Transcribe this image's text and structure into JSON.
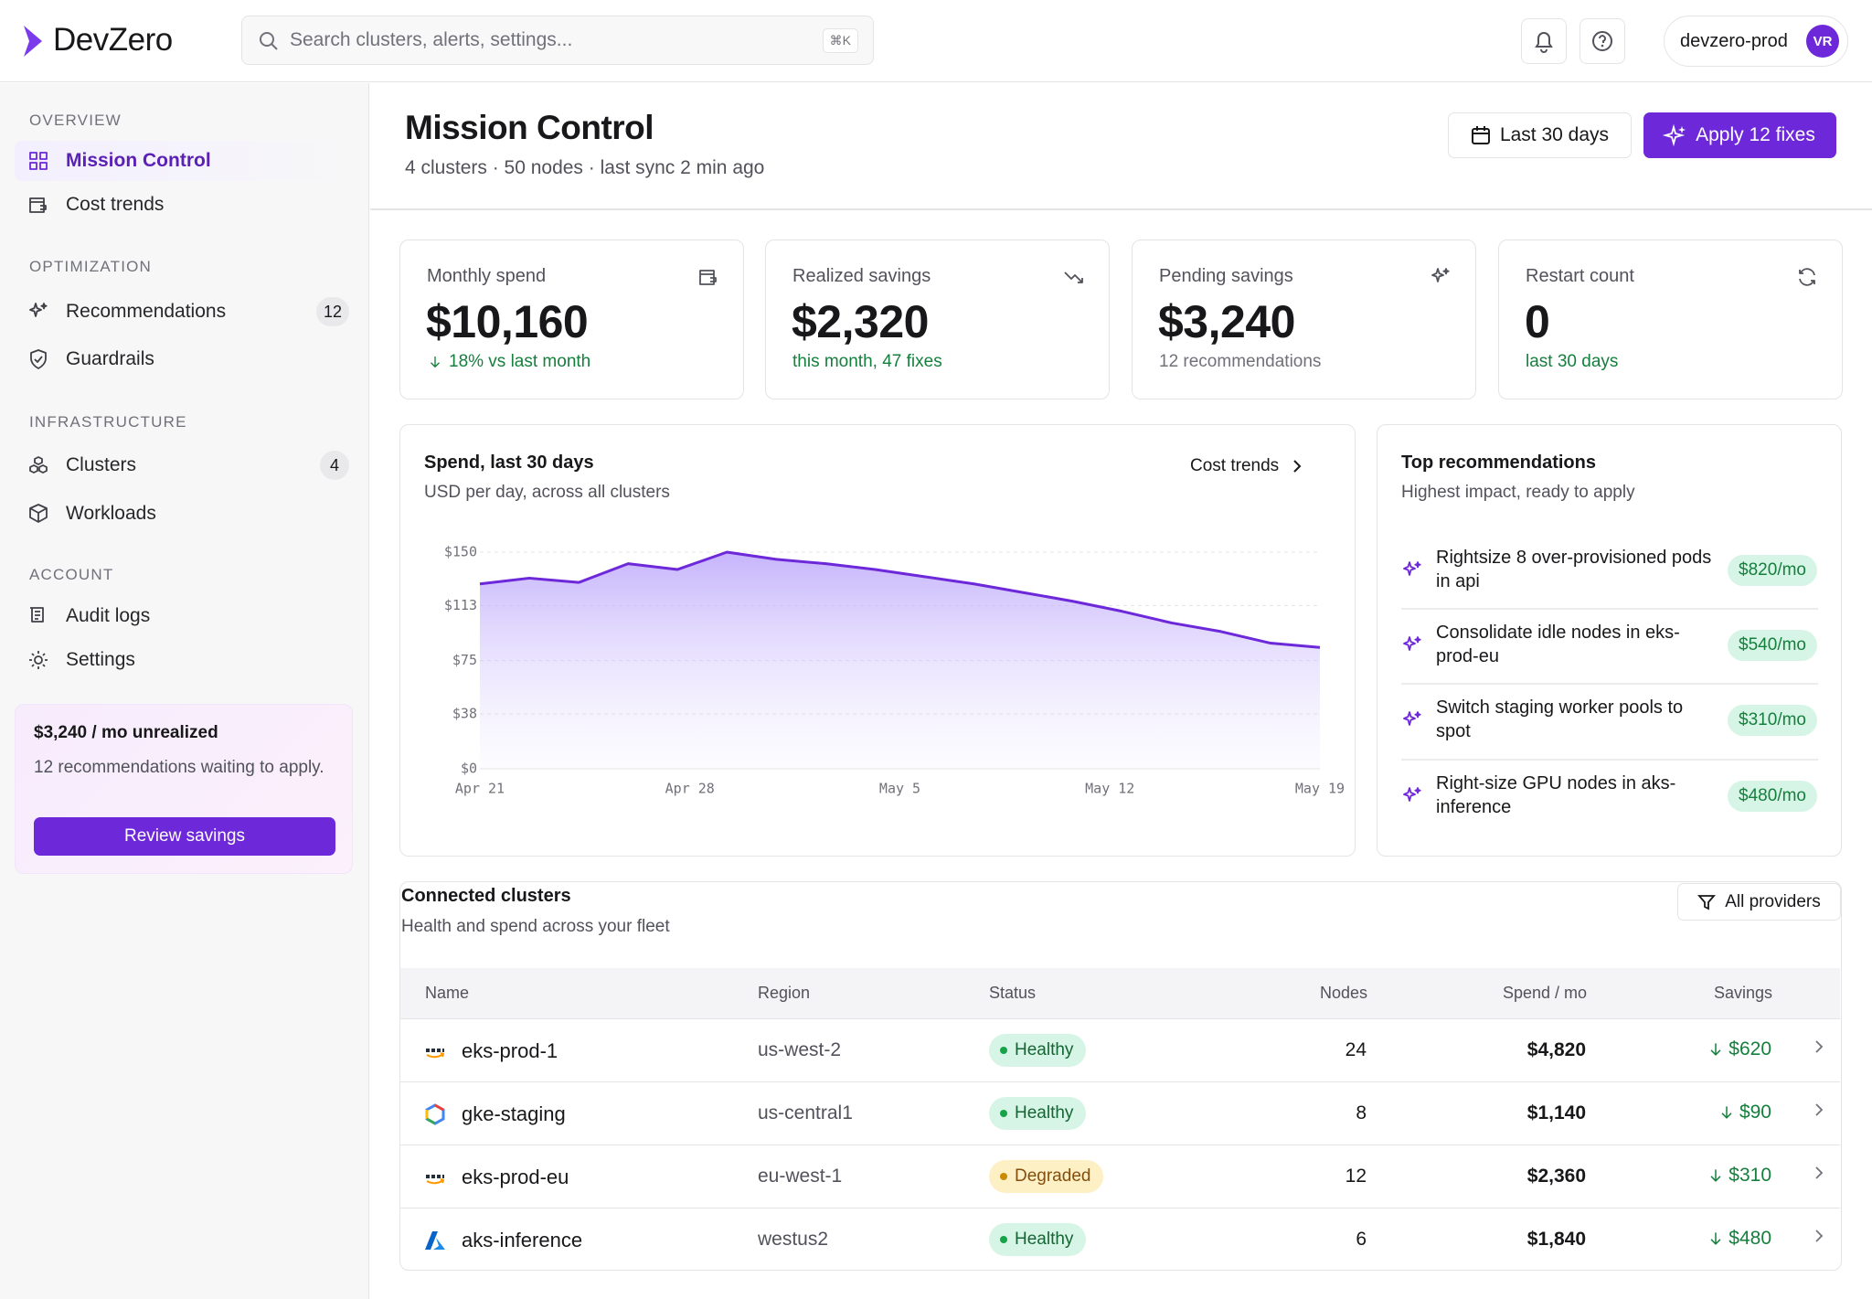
{
  "header": {
    "logo": "DevZero",
    "search_placeholder": "Search clusters, alerts, settings...",
    "shortcut": "⌘K",
    "account": "devzero-prod",
    "avatar": "VR"
  },
  "sidebar": {
    "sections": [
      {
        "title": "OVERVIEW",
        "items": [
          {
            "label": "Mission Control"
          },
          {
            "label": "Cost trends"
          }
        ]
      },
      {
        "title": "OPTIMIZATION",
        "items": [
          {
            "label": "Recommendations",
            "badge": 12
          },
          {
            "label": "Guardrails"
          }
        ]
      },
      {
        "title": "INFRASTRUCTURE",
        "items": [
          {
            "label": "Clusters",
            "badge": 4
          },
          {
            "label": "Workloads"
          }
        ]
      },
      {
        "title": "ACCOUNT",
        "items": [
          {
            "label": "Audit logs"
          },
          {
            "label": "Settings"
          }
        ]
      }
    ],
    "promo": {
      "title": "$3,240 / mo unrealized",
      "text": "12 recommendations waiting to apply.",
      "button": "Review savings"
    }
  },
  "page": {
    "title": "Mission Control",
    "subtitle": "4 clusters · 50 nodes · last sync 2 min ago",
    "date_button": "Last 30 days",
    "apply_button": "Apply 12 fixes"
  },
  "kpis": [
    {
      "label": "Monthly spend",
      "value": "$10,160",
      "note": "18% vs last month"
    },
    {
      "label": "Realized savings",
      "value": "$2,320",
      "note": "this month, 47 fixes"
    },
    {
      "label": "Pending savings",
      "value": "$3,240",
      "note": "12 recommendations"
    },
    {
      "label": "Restart count",
      "value": "0",
      "note": "last 30 days"
    }
  ],
  "chart_card": {
    "title": "Spend, last 30 days",
    "subtitle": "USD per day, across all clusters",
    "link": "Cost trends"
  },
  "chart_data": {
    "type": "area",
    "color": "#6d28d9",
    "values": [
      128,
      132,
      129,
      142,
      138,
      150,
      145,
      142,
      138,
      133,
      128,
      122,
      116,
      109,
      101,
      95,
      87,
      84
    ],
    "xticks": [
      "Apr 21",
      "Apr 28",
      "May 5",
      "May 12",
      "May 19"
    ],
    "ylim": [
      0,
      150
    ],
    "yticks": [
      {
        "value": 0,
        "label": "$0"
      },
      {
        "value": 38,
        "label": "$38"
      },
      {
        "value": 75,
        "label": "$75"
      },
      {
        "value": 113,
        "label": "$113"
      },
      {
        "value": 150,
        "label": "$150"
      }
    ],
    "grid": true
  },
  "recommendations": {
    "title": "Top recommendations",
    "subtitle": "Highest impact, ready to apply",
    "items": [
      {
        "text": "Rightsize 8 over-provisioned pods in api",
        "amount": "$820/mo"
      },
      {
        "text": "Consolidate idle nodes in eks-prod-eu",
        "amount": "$540/mo"
      },
      {
        "text": "Switch staging worker pools to spot",
        "amount": "$310/mo"
      },
      {
        "text": "Right-size GPU nodes in aks-inference",
        "amount": "$480/mo"
      }
    ]
  },
  "clusters": {
    "title": "Connected clusters",
    "subtitle": "Health and spend across your fleet",
    "filter": "All providers",
    "columns": [
      "Name",
      "Region",
      "Status",
      "Nodes",
      "Spend / mo",
      "Savings"
    ],
    "rows": [
      [
        "eks-prod-1",
        "us-west-2",
        "Healthy",
        24,
        "$4,820",
        "$620"
      ],
      [
        "gke-staging",
        "us-central1",
        "Healthy",
        8,
        "$1,140",
        "$90"
      ],
      [
        "eks-prod-eu",
        "eu-west-1",
        "Degraded",
        12,
        "$2,360",
        "$310"
      ],
      [
        "aks-inference",
        "westus2",
        "Healthy",
        6,
        "$1,840",
        "$480"
      ]
    ]
  }
}
